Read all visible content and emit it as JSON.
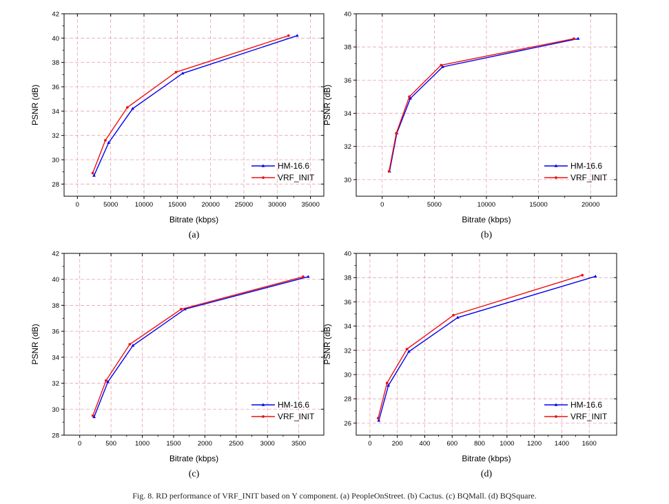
{
  "caption": "Fig. 8.   RD performance of VRF_INIT based on Y component. (a) PeopleOnStreet. (b) Cactus. (c) BQMall. (d) BQSquare.",
  "colors": {
    "hm": "#0000ee",
    "vrf": "#ee1111",
    "grid": "#e8a0b0"
  },
  "chart_data": [
    {
      "type": "line",
      "panel_label": "(a)",
      "xlabel": "Bitrate (kbps)",
      "ylabel": "PSNR (dB)",
      "xlim": [
        -2000,
        37000
      ],
      "ylim": [
        27,
        42
      ],
      "xticks": [
        0,
        5000,
        10000,
        15000,
        20000,
        25000,
        30000,
        35000
      ],
      "yticks": [
        28,
        30,
        32,
        34,
        36,
        38,
        40,
        42
      ],
      "legend_position": "bottom-right",
      "grid": true,
      "series": [
        {
          "name": "HM-16.6",
          "color": "#0000ee",
          "marker": "triangle",
          "x": [
            2500,
            4700,
            8300,
            15800,
            33000
          ],
          "y": [
            28.7,
            31.4,
            34.2,
            37.1,
            40.2
          ]
        },
        {
          "name": "VRF_INIT",
          "color": "#ee1111",
          "marker": "circle",
          "x": [
            2300,
            4200,
            7500,
            14800,
            31700
          ],
          "y": [
            28.9,
            31.6,
            34.3,
            37.2,
            40.2
          ]
        }
      ]
    },
    {
      "type": "line",
      "panel_label": "(b)",
      "xlabel": "Bitrate (kbps)",
      "ylabel": "PSNR (dB)",
      "xlim": [
        -2500,
        22500
      ],
      "ylim": [
        29,
        40
      ],
      "xticks": [
        0,
        5000,
        10000,
        15000,
        20000
      ],
      "yticks": [
        30,
        32,
        34,
        36,
        38,
        40
      ],
      "legend_position": "bottom-right",
      "grid": true,
      "series": [
        {
          "name": "HM-16.6",
          "color": "#0000ee",
          "marker": "triangle",
          "x": [
            700,
            1400,
            2700,
            5800,
            18800
          ],
          "y": [
            30.5,
            32.8,
            34.9,
            36.8,
            38.5
          ]
        },
        {
          "name": "VRF_INIT",
          "color": "#ee1111",
          "marker": "circle",
          "x": [
            650,
            1350,
            2600,
            5650,
            18400
          ],
          "y": [
            30.5,
            32.8,
            35.0,
            36.9,
            38.5
          ]
        }
      ]
    },
    {
      "type": "line",
      "panel_label": "(c)",
      "xlabel": "Bitrate (kbps)",
      "ylabel": "PSNR (dB)",
      "xlim": [
        -250,
        3900
      ],
      "ylim": [
        28,
        42
      ],
      "xticks": [
        0,
        500,
        1000,
        1500,
        2000,
        2500,
        3000,
        3500
      ],
      "yticks": [
        28,
        30,
        32,
        34,
        36,
        38,
        40,
        42
      ],
      "legend_position": "bottom-right",
      "grid": true,
      "series": [
        {
          "name": "HM-16.6",
          "color": "#0000ee",
          "marker": "triangle",
          "x": [
            230,
            450,
            850,
            1680,
            3650
          ],
          "y": [
            29.4,
            32.1,
            34.9,
            37.7,
            40.2
          ]
        },
        {
          "name": "VRF_INIT",
          "color": "#ee1111",
          "marker": "circle",
          "x": [
            210,
            420,
            800,
            1620,
            3570
          ],
          "y": [
            29.5,
            32.2,
            35.0,
            37.7,
            40.2
          ]
        }
      ]
    },
    {
      "type": "line",
      "panel_label": "(d)",
      "xlabel": "Bitrate (kbps)",
      "ylabel": "PSNR (dB)",
      "xlim": [
        -100,
        1800
      ],
      "ylim": [
        25,
        40
      ],
      "xticks": [
        0,
        200,
        400,
        600,
        800,
        1000,
        1200,
        1400,
        1600
      ],
      "yticks": [
        26,
        28,
        30,
        32,
        34,
        36,
        38,
        40
      ],
      "legend_position": "bottom-right",
      "grid": true,
      "series": [
        {
          "name": "HM-16.6",
          "color": "#0000ee",
          "marker": "triangle",
          "x": [
            65,
            135,
            285,
            640,
            1645
          ],
          "y": [
            26.2,
            29.1,
            31.9,
            34.7,
            38.1
          ]
        },
        {
          "name": "VRF_INIT",
          "color": "#ee1111",
          "marker": "circle",
          "x": [
            60,
            125,
            270,
            610,
            1550
          ],
          "y": [
            26.4,
            29.3,
            32.1,
            34.9,
            38.2
          ]
        }
      ]
    }
  ]
}
